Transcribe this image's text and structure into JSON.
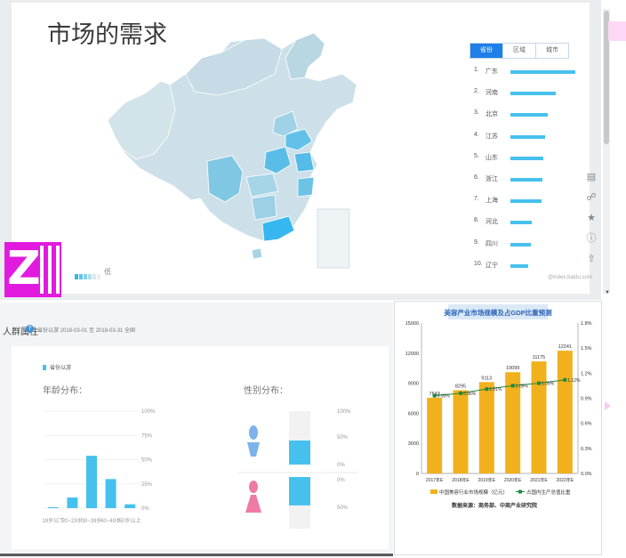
{
  "top": {
    "title": "市场的需求",
    "tabs": [
      "省份",
      "区域",
      "城市"
    ],
    "legend_low": "低",
    "watermark": "@index.baidu.com",
    "ranking": [
      {
        "no": "1.",
        "name": "广东",
        "value": 100
      },
      {
        "no": "2.",
        "name": "河南",
        "value": 70
      },
      {
        "no": "3.",
        "name": "北京",
        "value": 57
      },
      {
        "no": "4.",
        "name": "江苏",
        "value": 54
      },
      {
        "no": "5.",
        "name": "山东",
        "value": 51
      },
      {
        "no": "6.",
        "name": "浙江",
        "value": 49
      },
      {
        "no": "7.",
        "name": "上海",
        "value": 48
      },
      {
        "no": "8.",
        "name": "河北",
        "value": 33
      },
      {
        "no": "9.",
        "name": "四川",
        "value": 31
      },
      {
        "no": "10.",
        "name": "辽宁",
        "value": 28
      }
    ],
    "tools": [
      "comment-icon",
      "share-icon",
      "star-icon",
      "help-icon",
      "top-icon"
    ],
    "colors": {
      "accent": "#1f7fe6",
      "bar": "#46c1ee"
    }
  },
  "crowd": {
    "header": "人群属性",
    "info_icon": "?",
    "date_range": "省份以游   2018-03-01 至 2018-03-31   全国",
    "legend": "省份以游",
    "age_title": "年龄分布：",
    "gender_title": "性别分布：",
    "age_ticks": [
      "100%",
      "75%",
      "50%",
      "25%",
      "0%"
    ],
    "age_categories": [
      "19岁以下",
      "20~29岁",
      "30~39岁",
      "40~49岁",
      "50岁以上"
    ],
    "age_values": [
      1,
      11,
      54,
      30,
      4
    ],
    "gender_ticks_top": [
      "100%",
      "50%",
      "0%"
    ],
    "gender_ticks_bottom": [
      "0%",
      "50%"
    ],
    "gender_male": 45,
    "gender_female": 55
  },
  "chart_data": {
    "type": "bar",
    "title": "美容产业市场规模及占GDP比重预测",
    "categories": [
      "2017年E",
      "2018年E",
      "2019年E",
      "2020年E",
      "2021年E",
      "2022年E"
    ],
    "series": [
      {
        "name": "中国美容行业市场规模（亿元）",
        "values": [
          7543,
          8295,
          9113,
          10099,
          11175,
          12241
        ]
      },
      {
        "name": "占国内生产总值比重",
        "values": [
          0.93,
          0.96,
          1.01,
          1.05,
          1.08,
          1.12
        ]
      }
    ],
    "left_ticks": [
      "15000",
      "12000",
      "9000",
      "6000",
      "3000",
      "0"
    ],
    "right_ticks": [
      "1.8%",
      "1.5%",
      "1.2%",
      "0.9%",
      "0.6%",
      "0.3%",
      "0.0%"
    ],
    "left_ylim": [
      0,
      15000
    ],
    "right_ylim": [
      0,
      1.8
    ],
    "line_labels": [
      "0.93%",
      "0.96%",
      "1.01%",
      "1.05%",
      "1.08%",
      "1.12%"
    ],
    "source": "数据来源：商务部、中商产业研究院",
    "colors": {
      "bar": "#f1b11d",
      "line": "#1f8a3b",
      "title_bg": "#dbe8f6",
      "title_text": "#2a64b8"
    }
  }
}
